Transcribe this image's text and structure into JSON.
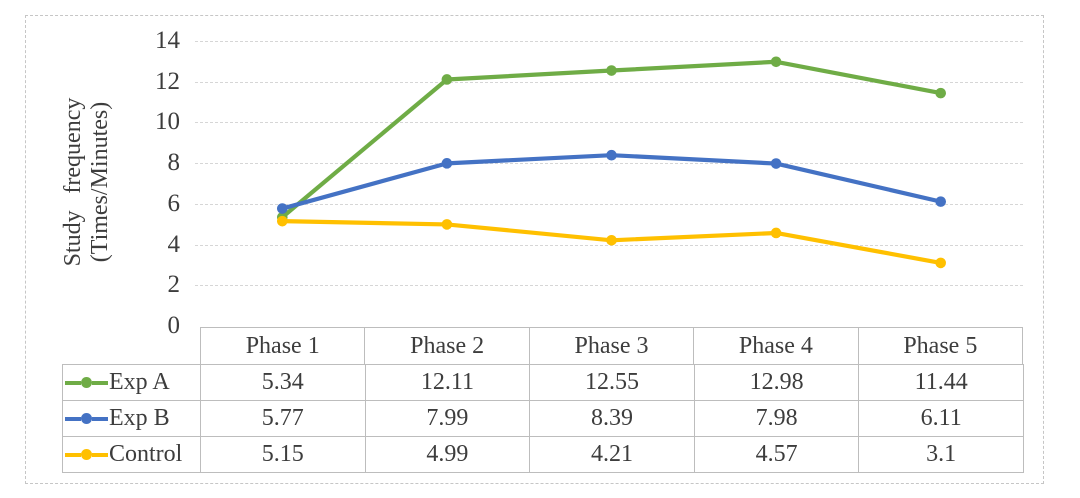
{
  "chart_data": {
    "type": "line",
    "title": "",
    "xlabel": "",
    "ylabel": "Study frequency (Times/Minutes)",
    "ylabel_lines": [
      "Study frequency",
      "(Times/Minutes)"
    ],
    "categories": [
      "Phase 1",
      "Phase 2",
      "Phase 3",
      "Phase 4",
      "Phase 5"
    ],
    "series": [
      {
        "name": "Exp A",
        "color": "#6FAC46",
        "values": [
          5.34,
          12.11,
          12.55,
          12.98,
          11.44
        ]
      },
      {
        "name": "Exp B",
        "color": "#4472C4",
        "values": [
          5.77,
          7.99,
          8.39,
          7.98,
          6.11
        ]
      },
      {
        "name": "Control",
        "color": "#FFC000",
        "values": [
          5.15,
          4.99,
          4.21,
          4.57,
          3.1
        ]
      }
    ],
    "ylim": [
      0,
      14
    ],
    "y_ticks": [
      0,
      2,
      4,
      6,
      8,
      10,
      12,
      14
    ],
    "grid": true,
    "marker": "circle",
    "legend_position": "table-left"
  },
  "colors": {
    "text": "#3d3d3d",
    "grid": "#d6d6d6",
    "table_border": "#bdbdbd",
    "outer_border": "#c6c6c6"
  }
}
